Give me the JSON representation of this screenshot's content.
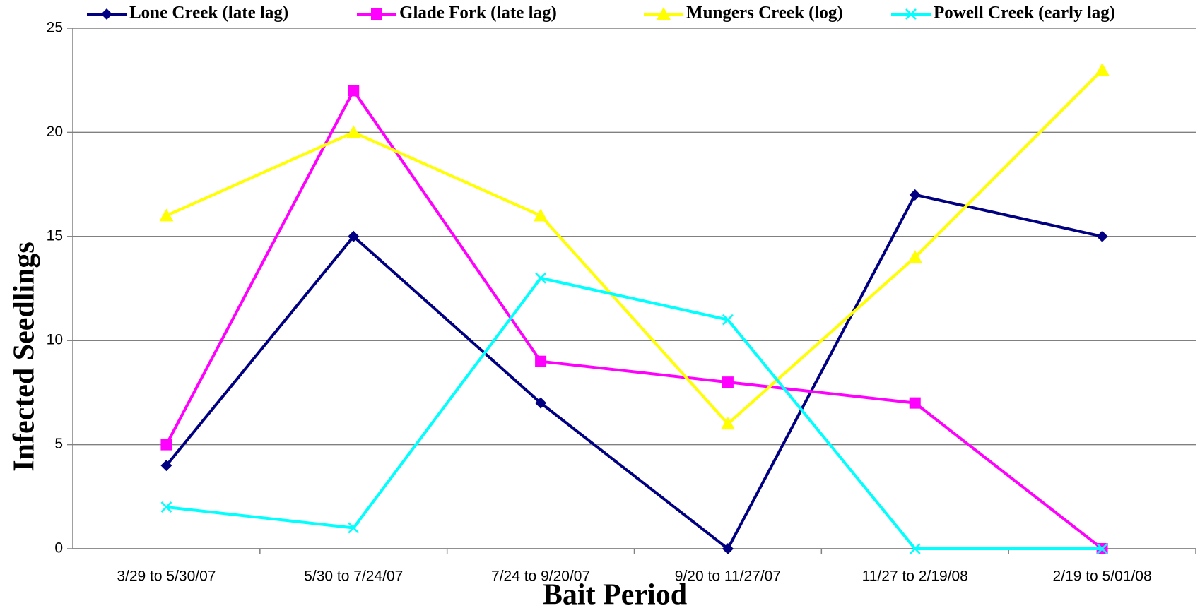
{
  "chart_data": {
    "type": "line",
    "ylabel": "Infected Seedlings",
    "xlabel": "Bait Period",
    "categories": [
      "3/29 to 5/30/07",
      "5/30 to 7/24/07",
      "7/24 to 9/20/07",
      "9/20 to 11/27/07",
      "11/27 to 2/19/08",
      "2/19 to 5/01/08"
    ],
    "series": [
      {
        "name": "Lone Creek (late lag)",
        "color": "#000080",
        "marker": "diamond",
        "values": [
          4,
          15,
          7,
          0,
          17,
          15
        ]
      },
      {
        "name": "Glade Fork (late lag)",
        "color": "#ff00ff",
        "marker": "square",
        "values": [
          5,
          22,
          9,
          8,
          7,
          0
        ]
      },
      {
        "name": "Mungers Creek (log)",
        "color": "#ffff00",
        "marker": "triangle",
        "values": [
          16,
          20,
          16,
          6,
          14,
          23
        ]
      },
      {
        "name": "Powell Creek (early lag)",
        "color": "#00ffff",
        "marker": "x",
        "values": [
          2,
          1,
          13,
          11,
          0,
          0
        ]
      }
    ],
    "ylim": [
      0,
      25
    ],
    "yticks": [
      0,
      5,
      10,
      15,
      20,
      25
    ],
    "grid": true,
    "legend": "top"
  }
}
